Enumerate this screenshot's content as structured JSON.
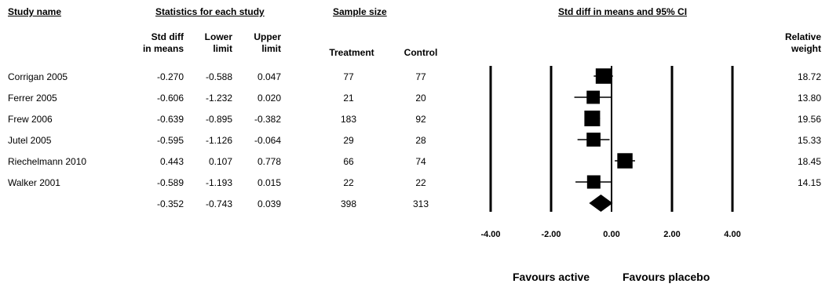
{
  "headers": {
    "study_name": "Study name",
    "statistics": "Statistics for each study",
    "sample_size": "Sample size",
    "ci": "Std diff in means and 95% CI"
  },
  "subheaders": {
    "std_diff_1": "Std diff",
    "std_diff_2": "in means",
    "lower_1": "Lower",
    "lower_2": "limit",
    "upper_1": "Upper",
    "upper_2": "limit",
    "treatment": "Treatment",
    "control": "Control",
    "weight_1": "Relative",
    "weight_2": "weight"
  },
  "rows": [
    {
      "study": "Corrigan 2005",
      "std_diff": "-0.270",
      "lower": "-0.588",
      "upper": "0.047",
      "treatment": "77",
      "control": "77",
      "weight": "18.72"
    },
    {
      "study": "Ferrer 2005",
      "std_diff": "-0.606",
      "lower": "-1.232",
      "upper": "0.020",
      "treatment": "21",
      "control": "20",
      "weight": "13.80"
    },
    {
      "study": "Frew 2006",
      "std_diff": "-0.639",
      "lower": "-0.895",
      "upper": "-0.382",
      "treatment": "183",
      "control": "92",
      "weight": "19.56"
    },
    {
      "study": "Jutel 2005",
      "std_diff": "-0.595",
      "lower": "-1.126",
      "upper": "-0.064",
      "treatment": "29",
      "control": "28",
      "weight": "15.33"
    },
    {
      "study": "Riechelmann 2010",
      "std_diff": "0.443",
      "lower": "0.107",
      "upper": "0.778",
      "treatment": "66",
      "control": "74",
      "weight": "18.45"
    },
    {
      "study": "Walker 2001",
      "std_diff": "-0.589",
      "lower": "-1.193",
      "upper": "0.015",
      "treatment": "22",
      "control": "22",
      "weight": "14.15"
    }
  ],
  "summary": {
    "std_diff": "-0.352",
    "lower": "-0.743",
    "upper": "0.039",
    "treatment": "398",
    "control": "313"
  },
  "favours": {
    "left": "Favours active",
    "right": "Favours placebo"
  },
  "chart_data": {
    "type": "forest",
    "x_ticks": [
      "-4.00",
      "-2.00",
      "0.00",
      "2.00",
      "4.00"
    ],
    "xlim": [
      -4,
      4
    ],
    "series": [
      {
        "values": [
          {
            "y": -0.27,
            "lower": -0.588,
            "upper": 0.047,
            "weight": 18.72
          },
          {
            "y": -0.606,
            "lower": -1.232,
            "upper": 0.02,
            "weight": 13.8
          },
          {
            "y": -0.639,
            "lower": -0.895,
            "upper": -0.382,
            "weight": 19.56
          },
          {
            "y": -0.595,
            "lower": -1.126,
            "upper": -0.064,
            "weight": 15.33
          },
          {
            "y": 0.443,
            "lower": 0.107,
            "upper": 0.778,
            "weight": 18.45
          },
          {
            "y": -0.589,
            "lower": -1.193,
            "upper": 0.015,
            "weight": 14.15
          }
        ]
      }
    ],
    "pooled": {
      "y": -0.352,
      "lower": -0.743,
      "upper": 0.039
    }
  }
}
